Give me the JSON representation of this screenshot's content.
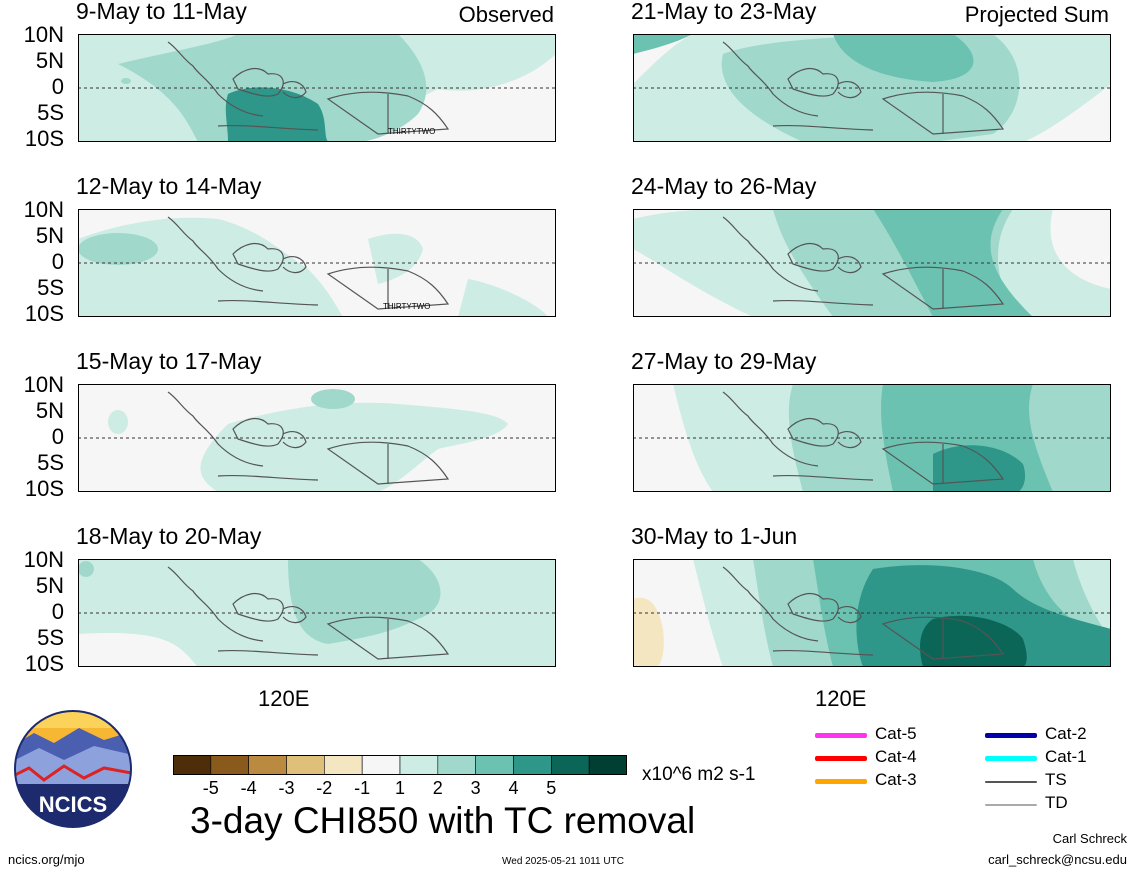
{
  "header": {
    "left_tag": "Observed",
    "right_tag": "Projected Sum"
  },
  "panels_observed": [
    {
      "title": "9-May to 11-May",
      "storm_label": "THIRTYTWO"
    },
    {
      "title": "12-May to 14-May",
      "storm_label": "THIRTYTWO"
    },
    {
      "title": "15-May to 17-May",
      "storm_label": ""
    },
    {
      "title": "18-May to 20-May",
      "storm_label": ""
    }
  ],
  "panels_projected": [
    {
      "title": "21-May to 23-May"
    },
    {
      "title": "24-May to 26-May"
    },
    {
      "title": "27-May to 29-May"
    },
    {
      "title": "30-May to 1-Jun"
    }
  ],
  "axes": {
    "lat_labels": [
      "10N",
      "5N",
      "0",
      "5S",
      "10S"
    ],
    "lon_label": "120E"
  },
  "colorbar": {
    "ticks": [
      "-5",
      "-4",
      "-3",
      "-2",
      "-1",
      "1",
      "2",
      "3",
      "4",
      "5"
    ],
    "colors": [
      "#4d2e08",
      "#8a5a1c",
      "#b98a3f",
      "#dfc07a",
      "#f4e6c1",
      "#f6f6f6",
      "#cdece4",
      "#a0d9cb",
      "#6cc2b0",
      "#2f968a",
      "#0b6658",
      "#023f33"
    ],
    "units": "x10^6 m2 s-1"
  },
  "title": "3-day CHI850 with TC removal",
  "legend": [
    {
      "label": "Cat-5",
      "color": "#ff33ee"
    },
    {
      "label": "Cat-4",
      "color": "#ff0000"
    },
    {
      "label": "Cat-3",
      "color": "#ffa500"
    },
    {
      "label": "Cat-2",
      "color": "#0000aa"
    },
    {
      "label": "Cat-1",
      "color": "#00ffff"
    },
    {
      "label": "TS",
      "color": "#555555"
    },
    {
      "label": "TD",
      "color": "#aaaaaa"
    }
  ],
  "logo": {
    "text": "NCICS"
  },
  "footer": {
    "website": "ncics.org/mjo",
    "timestamp": "Wed 2025-05-21 1011 UTC",
    "author": "Carl Schreck",
    "email": "carl_schreck@ncsu.edu"
  }
}
